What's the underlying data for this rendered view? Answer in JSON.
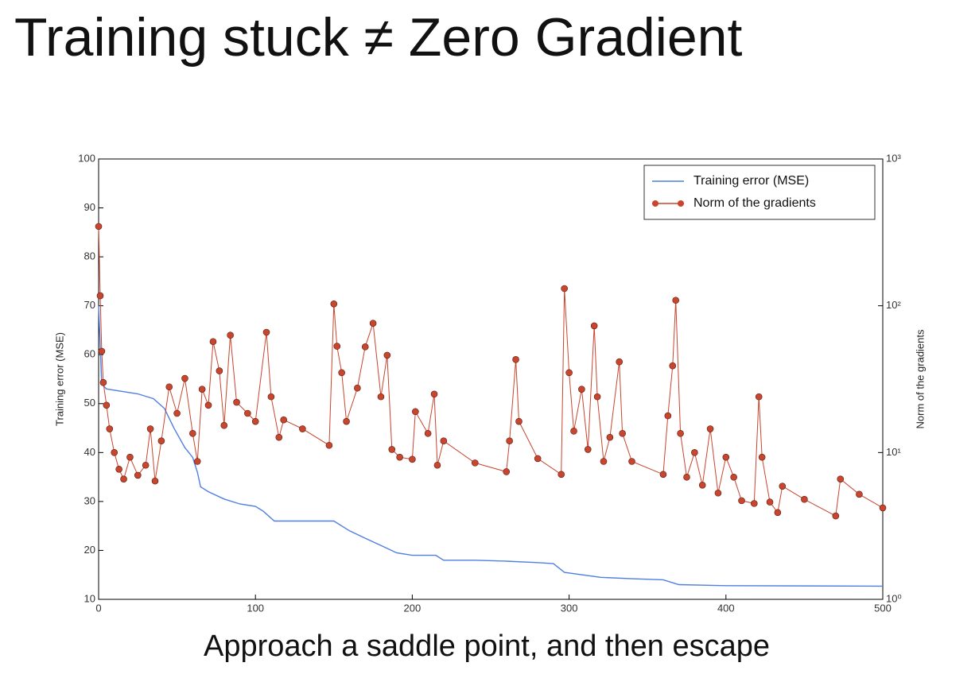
{
  "chart_data": {
    "type": "line",
    "title": "Training stuck ≠ Zero Gradient",
    "caption": "Approach a saddle point, and then escape",
    "ylabel": "Training error (MSE)",
    "y2label": "Norm of the gradients",
    "xlim": [
      0,
      500
    ],
    "xticks": [
      0,
      100,
      200,
      300,
      400,
      500
    ],
    "ylim": [
      10,
      100
    ],
    "yticks": [
      10,
      20,
      30,
      40,
      50,
      60,
      70,
      80,
      90,
      100
    ],
    "y2lim": [
      1,
      1000
    ],
    "y2scale": "log",
    "y2ticks": [
      {
        "value": 1,
        "label": "10⁰"
      },
      {
        "value": 10,
        "label": "10¹"
      },
      {
        "value": 100,
        "label": "10²"
      },
      {
        "value": 1000,
        "label": "10³"
      }
    ],
    "grid": false,
    "legend": "upper right",
    "series": [
      {
        "name": "Training error (MSE)",
        "color": "#4f7fe0",
        "markers": false,
        "x": [
          0,
          2,
          5,
          15,
          25,
          35,
          42,
          48,
          55,
          60,
          63,
          65,
          70,
          80,
          90,
          100,
          105,
          112,
          130,
          150,
          160,
          170,
          180,
          190,
          200,
          215,
          220,
          240,
          260,
          280,
          290,
          297,
          320,
          340,
          360,
          370,
          400,
          500
        ],
        "values": [
          70,
          54,
          53,
          52.5,
          52,
          51,
          49,
          45,
          41,
          39,
          36,
          33,
          32,
          30.5,
          29.5,
          29,
          28,
          26,
          26,
          26,
          24,
          22.5,
          21,
          19.5,
          19,
          19,
          18,
          18,
          17.8,
          17.5,
          17.3,
          15.5,
          14.5,
          14.2,
          14,
          13,
          12.8,
          12.7
        ]
      },
      {
        "name": "Norm of the gradients",
        "color": "#c8452e",
        "markers": true,
        "axis": "y2",
        "x": [
          0,
          1,
          2,
          3,
          5,
          7,
          10,
          13,
          16,
          20,
          25,
          30,
          33,
          36,
          40,
          45,
          50,
          55,
          60,
          63,
          66,
          70,
          73,
          77,
          80,
          84,
          88,
          95,
          100,
          107,
          110,
          115,
          118,
          130,
          147,
          150,
          152,
          155,
          158,
          165,
          170,
          175,
          180,
          184,
          187,
          192,
          200,
          202,
          210,
          214,
          216,
          220,
          240,
          260,
          262,
          266,
          268,
          280,
          295,
          297,
          300,
          303,
          308,
          312,
          316,
          318,
          322,
          326,
          332,
          334,
          340,
          360,
          363,
          366,
          368,
          371,
          375,
          380,
          385,
          390,
          395,
          400,
          405,
          410,
          418,
          421,
          423,
          428,
          433,
          436,
          450,
          470,
          473,
          485,
          500
        ],
        "values": [
          347,
          117,
          49,
          30,
          21,
          14.5,
          10,
          7.7,
          6.6,
          9.3,
          7,
          8.2,
          14.5,
          6.4,
          12,
          28,
          18.5,
          32,
          13.5,
          8.7,
          27,
          21,
          57,
          36,
          15.3,
          63,
          22,
          18.5,
          16.3,
          66,
          24,
          12.7,
          16.7,
          14.5,
          11.2,
          103,
          53,
          35,
          16.3,
          27.5,
          52.5,
          76,
          24,
          46,
          10.5,
          9.3,
          9,
          19,
          13.5,
          25,
          8.2,
          12,
          8.5,
          7.4,
          12,
          43,
          16.3,
          9.1,
          7.1,
          131,
          35,
          14,
          27,
          10.5,
          73,
          24,
          8.7,
          12.7,
          41.5,
          13.5,
          8.7,
          7.1,
          17.8,
          39,
          109,
          13.5,
          6.8,
          10,
          6,
          14.5,
          5.3,
          9.3,
          6.8,
          4.7,
          4.5,
          24,
          9.3,
          4.6,
          3.9,
          5.9,
          4.8,
          3.7,
          6.6,
          5.2,
          4.2
        ]
      }
    ]
  }
}
